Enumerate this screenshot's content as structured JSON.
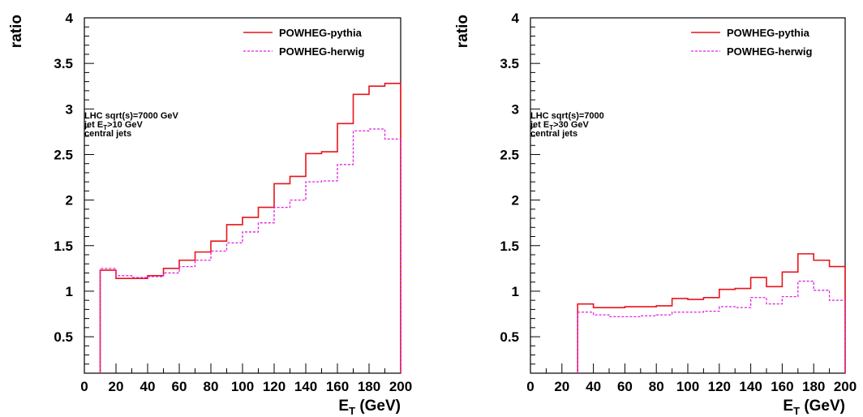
{
  "chart_data": [
    {
      "type": "line",
      "step": true,
      "xlabel": "E",
      "xlabel_sub": "T",
      "xlabel_unit": " (GeV)",
      "ylabel": "ratio",
      "xlim": [
        0,
        200
      ],
      "ylim": [
        0.1,
        4
      ],
      "xticks": [
        "0",
        "20",
        "40",
        "60",
        "80",
        "100",
        "120",
        "140",
        "160",
        "180",
        "200"
      ],
      "yticks": [
        "0.5",
        "1",
        "1.5",
        "2",
        "2.5",
        "3",
        "3.5",
        "4"
      ],
      "grid": false,
      "legend": "top-right",
      "annotation": [
        "LHC sqrt(s)=7000 GeV",
        "jet  E",
        "T",
        ">10 GeV",
        "central jets"
      ],
      "bin_edges": [
        10,
        20,
        30,
        40,
        50,
        60,
        70,
        80,
        90,
        100,
        110,
        120,
        130,
        140,
        150,
        160,
        170,
        180,
        190,
        200
      ],
      "series": [
        {
          "name": "POWHEG-pythia",
          "color": "#e8141c",
          "style": "solid",
          "values": [
            1.23,
            1.14,
            1.14,
            1.17,
            1.25,
            1.34,
            1.43,
            1.55,
            1.73,
            1.81,
            1.92,
            2.18,
            2.26,
            2.51,
            2.53,
            2.84,
            3.16,
            3.25,
            3.28
          ]
        },
        {
          "name": "POWHEG-herwig",
          "color": "#e020e0",
          "style": "dashed",
          "values": [
            1.25,
            1.17,
            1.15,
            1.16,
            1.2,
            1.27,
            1.34,
            1.44,
            1.53,
            1.65,
            1.75,
            1.92,
            2.0,
            2.2,
            2.21,
            2.39,
            2.76,
            2.78,
            2.67
          ]
        }
      ]
    },
    {
      "type": "line",
      "step": true,
      "xlabel": "E",
      "xlabel_sub": "T",
      "xlabel_unit": " (GeV)",
      "ylabel": "ratio",
      "xlim": [
        0,
        200
      ],
      "ylim": [
        0.1,
        4
      ],
      "xticks": [
        "0",
        "20",
        "40",
        "60",
        "80",
        "100",
        "120",
        "140",
        "160",
        "180",
        "200"
      ],
      "yticks": [
        "0.5",
        "1",
        "1.5",
        "2",
        "2.5",
        "3",
        "3.5",
        "4"
      ],
      "grid": false,
      "legend": "top-right",
      "annotation": [
        "LHC sqrt(s)=7000",
        "jet  E",
        "T",
        ">30 GeV",
        "central jets"
      ],
      "bin_edges": [
        30,
        40,
        50,
        60,
        70,
        80,
        90,
        100,
        110,
        120,
        130,
        140,
        150,
        160,
        170,
        180,
        190,
        200
      ],
      "series": [
        {
          "name": "POWHEG-pythia",
          "color": "#e8141c",
          "style": "solid",
          "values": [
            0.86,
            0.82,
            0.82,
            0.83,
            0.83,
            0.84,
            0.92,
            0.91,
            0.93,
            1.02,
            1.03,
            1.15,
            1.05,
            1.21,
            1.41,
            1.34,
            1.27
          ]
        },
        {
          "name": "POWHEG-herwig",
          "color": "#e020e0",
          "style": "dashed",
          "values": [
            0.77,
            0.74,
            0.72,
            0.72,
            0.73,
            0.74,
            0.77,
            0.77,
            0.78,
            0.83,
            0.82,
            0.93,
            0.86,
            0.94,
            1.11,
            1.01,
            0.9
          ]
        }
      ]
    }
  ]
}
